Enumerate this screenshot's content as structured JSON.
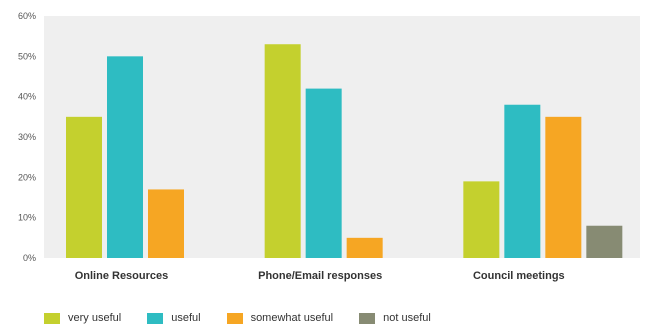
{
  "chart_data": {
    "type": "bar",
    "categories": [
      "Online Resources",
      "Phone/Email responses",
      "Council meetings"
    ],
    "series": [
      {
        "name": "very useful",
        "values": [
          35,
          53,
          19
        ],
        "color": "#c4d02e"
      },
      {
        "name": "useful",
        "values": [
          50,
          42,
          38
        ],
        "color": "#2ebcc2"
      },
      {
        "name": "somewhat useful",
        "values": [
          17,
          5,
          35
        ],
        "color": "#f6a623"
      },
      {
        "name": "not useful",
        "values": [
          0,
          0,
          8
        ],
        "color": "#878b73"
      }
    ],
    "yticks": [
      "0%",
      "10%",
      "20%",
      "30%",
      "40%",
      "50%",
      "60%"
    ],
    "ylim": [
      0,
      60
    ],
    "grid": false,
    "legend": "bottom",
    "background": "#efefef"
  }
}
